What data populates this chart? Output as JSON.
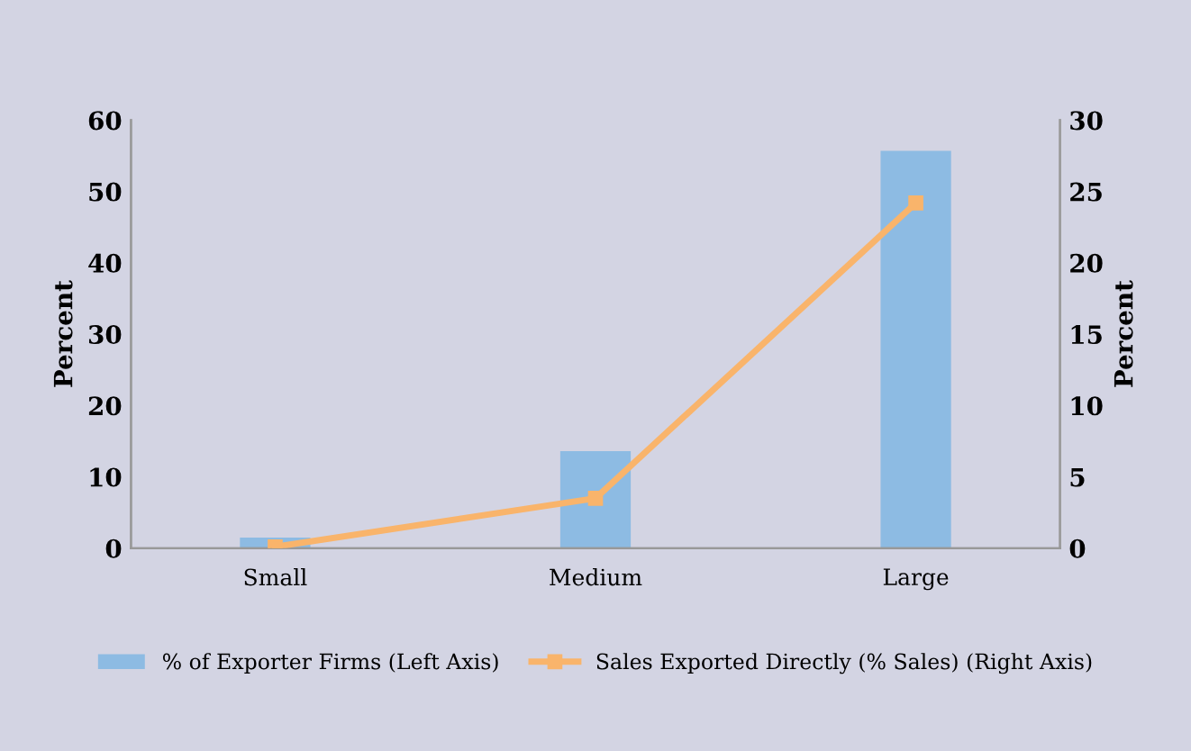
{
  "chart_data": {
    "type": "bar",
    "categories": [
      "Small",
      "Medium",
      "Large"
    ],
    "ylabel": "Percent",
    "y2label": "Percent",
    "ylim": [
      0,
      60
    ],
    "yticks": [
      0,
      10,
      20,
      30,
      40,
      50,
      60
    ],
    "y2lim": [
      0,
      30
    ],
    "y2ticks": [
      0,
      5,
      10,
      15,
      20,
      25,
      30
    ],
    "grid": false,
    "legend": "bottom",
    "marker": "square",
    "line_style": "solid",
    "series": [
      {
        "name": "% of Exporter Firms (Left Axis)",
        "color": "#8dbbe3",
        "values": [
          1.5,
          13.6,
          55.7
        ]
      },
      {
        "name": "Sales Exported Directly (% Sales) (Right Axis)",
        "type": "line",
        "axis": "y2",
        "color": "#f9b46b",
        "values": [
          0.1,
          3.5,
          24.2
        ]
      }
    ]
  }
}
